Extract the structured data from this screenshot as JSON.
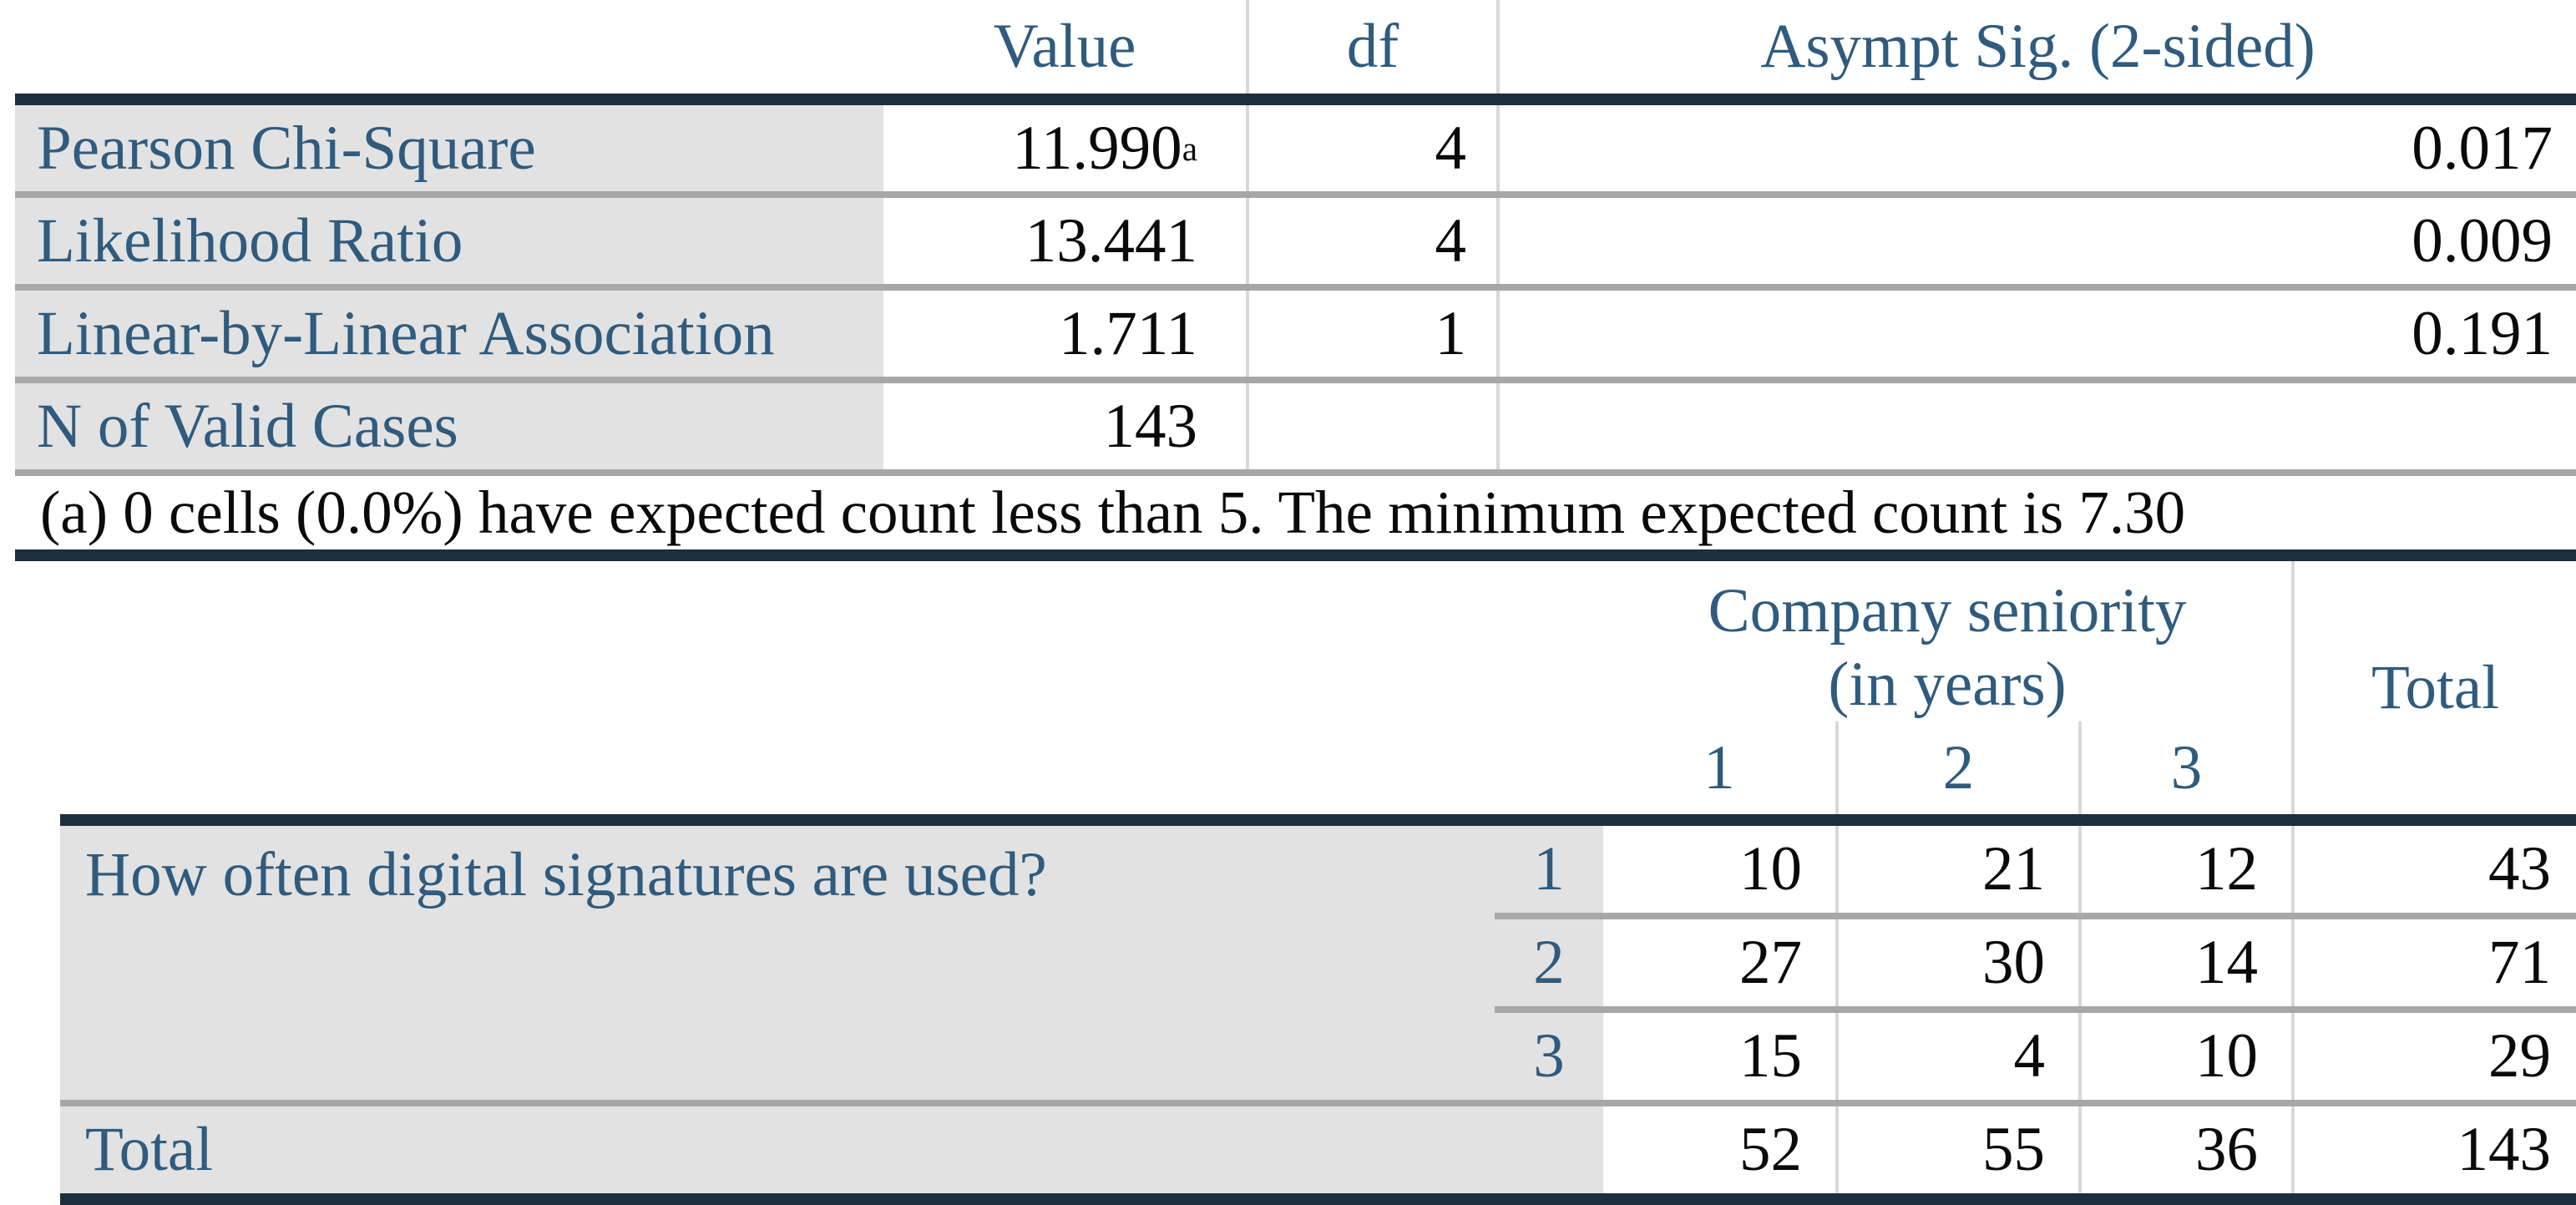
{
  "colors": {
    "rule_navy": "#1d2e3c",
    "label_blue": "#2f5b7e",
    "cell_gray": "#e2e2e2",
    "separator_gray": "#a7a7a7",
    "vline_gray": "#d8d8d8"
  },
  "chi_square": {
    "headers": {
      "value": "Value",
      "df": "df",
      "sig": "Asympt Sig. (2-sided)"
    },
    "rows": [
      {
        "label": "Pearson Chi-Square",
        "value": "11.990",
        "value_sup": "a",
        "df": "4",
        "sig": "0.017"
      },
      {
        "label": "Likelihood Ratio",
        "value": "13.441",
        "value_sup": "",
        "df": "4",
        "sig": "0.009"
      },
      {
        "label": "Linear-by-Linear Association",
        "value": "1.711",
        "value_sup": "",
        "df": "1",
        "sig": "0.191"
      },
      {
        "label": "N of Valid Cases",
        "value": "143",
        "value_sup": "",
        "df": "",
        "sig": ""
      }
    ],
    "footnote": "(a) 0 cells (0.0%) have expected count less than 5. The minimum expected count is 7.30"
  },
  "crosstab": {
    "group_title_line1": "Company seniority",
    "group_title_line2": "(in years)",
    "col_headers": [
      "1",
      "2",
      "3"
    ],
    "total_header": "Total",
    "question": "How often digital signatures are used?",
    "rows": [
      {
        "sub": "1",
        "v1": "10",
        "v2": "21",
        "v3": "12",
        "total": "43"
      },
      {
        "sub": "2",
        "v1": "27",
        "v2": "30",
        "v3": "14",
        "total": "71"
      },
      {
        "sub": "3",
        "v1": "15",
        "v2": "4",
        "v3": "10",
        "total": "29"
      }
    ],
    "total_row": {
      "label": "Total",
      "v1": "52",
      "v2": "55",
      "v3": "36",
      "total": "143"
    }
  },
  "chart_data": {
    "type": "table",
    "tables": [
      {
        "title": "Chi-Square Tests",
        "columns": [
          "",
          "Value",
          "df",
          "Asympt Sig. (2-sided)"
        ],
        "rows": [
          [
            "Pearson Chi-Square",
            "11.990a",
            "4",
            "0.017"
          ],
          [
            "Likelihood Ratio",
            "13.441",
            "4",
            "0.009"
          ],
          [
            "Linear-by-Linear Association",
            "1.711",
            "1",
            "0.191"
          ],
          [
            "N of Valid Cases",
            "143",
            "",
            ""
          ]
        ]
      },
      {
        "title": "Crosstab: How often digital signatures are used? x Company seniority (in years)",
        "columns": [
          "",
          "",
          "1",
          "2",
          "3",
          "Total"
        ],
        "rows": [
          [
            "How often digital signatures are used?",
            "1",
            "10",
            "21",
            "12",
            "43"
          ],
          [
            "",
            "2",
            "27",
            "30",
            "14",
            "71"
          ],
          [
            "",
            "3",
            "15",
            "4",
            "10",
            "29"
          ],
          [
            "Total",
            "",
            "52",
            "55",
            "36",
            "143"
          ]
        ]
      }
    ]
  }
}
